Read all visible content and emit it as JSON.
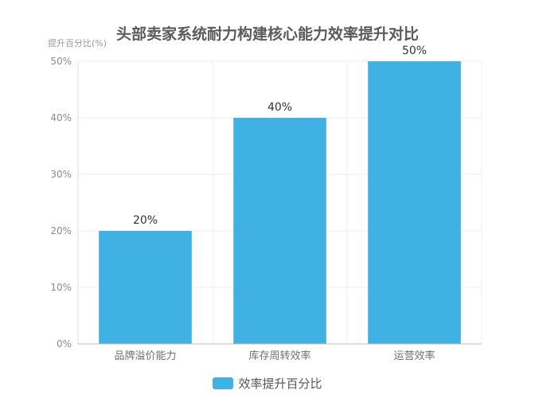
{
  "chart_data": {
    "type": "bar",
    "title": "头部卖家系统耐力构建核心能力效率提升对比",
    "ylabel": "提升百分比(%)",
    "xlabel": "",
    "categories": [
      "品牌溢价能力",
      "库存周转效率",
      "运营效率"
    ],
    "series": [
      {
        "name": "效率提升百分比",
        "values": [
          20,
          40,
          50
        ]
      }
    ],
    "data_labels": [
      "20%",
      "40%",
      "50%"
    ],
    "ylim": [
      0,
      50
    ],
    "yticks": [
      0,
      10,
      20,
      30,
      40,
      50
    ],
    "ytick_labels": [
      "0%",
      "10%",
      "20%",
      "30%",
      "40%",
      "50%"
    ],
    "grid": true,
    "legend_position": "bottom",
    "colors": {
      "bar": "#3fb1e3"
    }
  }
}
